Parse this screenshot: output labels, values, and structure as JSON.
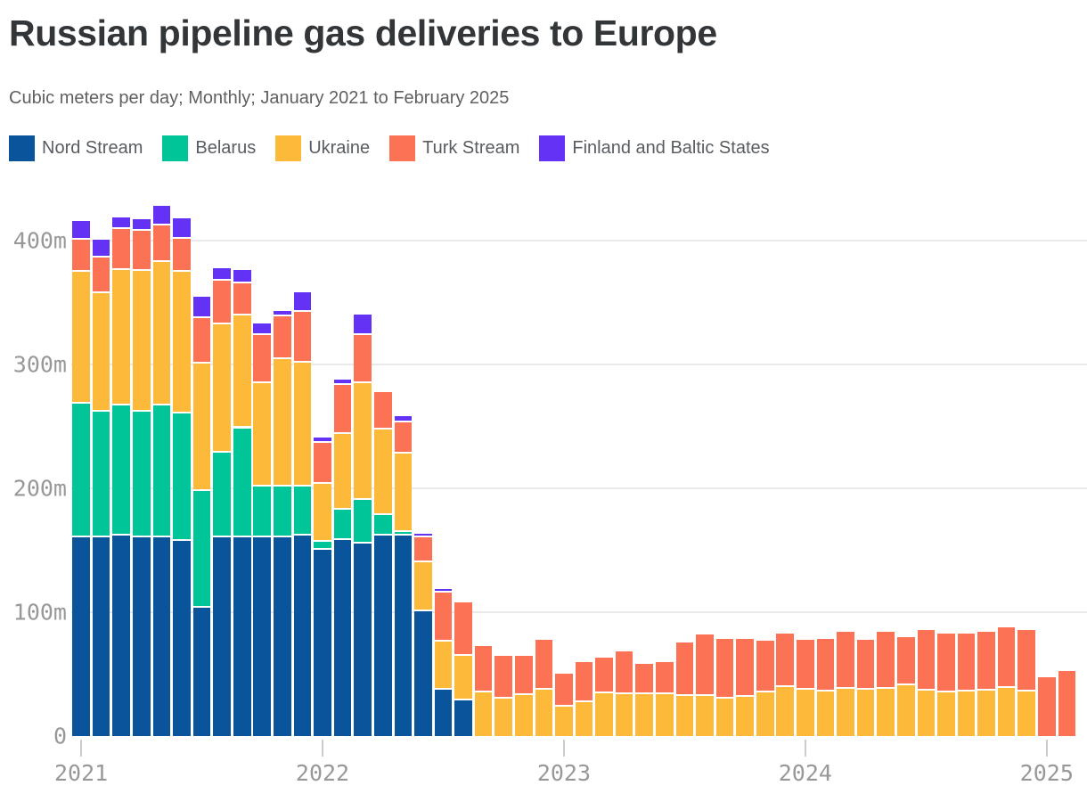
{
  "title": "Russian pipeline gas deliveries to Europe",
  "subtitle": "Cubic meters per day; Monthly; January 2021 to February 2025",
  "chart_data": {
    "type": "bar",
    "stacked": true,
    "unit": "million cubic meters per day",
    "title": "Russian pipeline gas deliveries to Europe",
    "xlabel": "",
    "ylabel": "",
    "ylim": [
      0,
      430
    ],
    "grid": "horizontal",
    "legend_position": "top",
    "categories": [
      "Jan 2021",
      "Feb 2021",
      "Mar 2021",
      "Apr 2021",
      "May 2021",
      "Jun 2021",
      "Jul 2021",
      "Aug 2021",
      "Sep 2021",
      "Oct 2021",
      "Nov 2021",
      "Dec 2021",
      "Jan 2022",
      "Feb 2022",
      "Mar 2022",
      "Apr 2022",
      "May 2022",
      "Jun 2022",
      "Jul 2022",
      "Aug 2022",
      "Sep 2022",
      "Oct 2022",
      "Nov 2022",
      "Dec 2022",
      "Jan 2023",
      "Feb 2023",
      "Mar 2023",
      "Apr 2023",
      "May 2023",
      "Jun 2023",
      "Jul 2023",
      "Aug 2023",
      "Sep 2023",
      "Oct 2023",
      "Nov 2023",
      "Dec 2023",
      "Jan 2024",
      "Feb 2024",
      "Mar 2024",
      "Apr 2024",
      "May 2024",
      "Jun 2024",
      "Jul 2024",
      "Aug 2024",
      "Sep 2024",
      "Oct 2024",
      "Nov 2024",
      "Dec 2024",
      "Jan 2025",
      "Feb 2025"
    ],
    "series": [
      {
        "name": "Nord Stream",
        "color": "#0a549b",
        "values": [
          162,
          162,
          163,
          162,
          162,
          159,
          105,
          162,
          162,
          162,
          162,
          163,
          152,
          160,
          157,
          163,
          163,
          102,
          39,
          30,
          0,
          0,
          0,
          0,
          0,
          0,
          0,
          0,
          0,
          0,
          0,
          0,
          0,
          0,
          0,
          0,
          0,
          0,
          0,
          0,
          0,
          0,
          0,
          0,
          0,
          0,
          0,
          0,
          0,
          0
        ]
      },
      {
        "name": "Belarus",
        "color": "#00c598",
        "values": [
          108,
          101,
          105,
          101,
          106,
          103,
          94,
          68,
          88,
          41,
          41,
          40,
          6,
          24,
          35,
          17,
          3.5,
          0,
          0,
          0,
          0,
          0,
          0,
          0,
          0,
          0,
          0,
          0,
          0,
          0,
          0,
          0,
          0,
          0,
          0,
          0,
          0,
          0,
          0,
          0,
          0,
          0,
          0,
          0,
          0,
          0,
          0,
          0,
          0,
          0
        ]
      },
      {
        "name": "Ukraine",
        "color": "#fdba3a",
        "values": [
          106,
          96,
          110,
          114,
          116,
          114,
          103,
          104,
          91,
          83,
          103,
          100,
          47,
          61,
          94,
          69,
          63,
          40,
          39,
          36,
          37,
          32,
          34.5,
          39,
          25,
          29,
          36,
          35,
          35.5,
          35.5,
          33.5,
          34,
          32,
          33,
          37,
          41,
          39,
          37.5,
          39.5,
          39,
          39.5,
          42.5,
          38,
          37,
          37.5,
          38,
          40,
          37.5,
          0,
          0
        ]
      },
      {
        "name": "Turk Stream",
        "color": "#fc7254",
        "values": [
          26,
          29,
          33,
          32,
          30,
          27,
          37,
          35,
          26,
          39,
          34,
          41,
          33,
          40,
          39,
          29,
          25.5,
          20,
          39.5,
          42,
          36,
          33,
          30,
          39,
          25.5,
          31,
          27.5,
          33,
          22.5,
          24.5,
          42,
          48,
          46.5,
          45.5,
          40,
          42,
          38.5,
          41,
          44.5,
          39,
          45,
          37.5,
          47.5,
          45.5,
          45,
          46,
          48,
          48,
          47.5,
          52.5
        ]
      },
      {
        "name": "Finland and Baltic States",
        "color": "#6432f5",
        "values": [
          14,
          13,
          8,
          8,
          14,
          15,
          16,
          9,
          9,
          8,
          3,
          14,
          3,
          3,
          15,
          0,
          3.5,
          1.5,
          1.5,
          0,
          0,
          0,
          0,
          0,
          0,
          0,
          0,
          0,
          0,
          0,
          0,
          0,
          0,
          0,
          0,
          0,
          0,
          0,
          0,
          0,
          0,
          0,
          0,
          0,
          0,
          0,
          0,
          0,
          0,
          0
        ]
      }
    ],
    "y_ticks": [
      {
        "value": 400,
        "label": "400m"
      },
      {
        "value": 300,
        "label": "300m"
      },
      {
        "value": 200,
        "label": "200m"
      },
      {
        "value": 100,
        "label": "100m"
      },
      {
        "value": 0,
        "label": "0"
      }
    ],
    "x_ticks": [
      {
        "month_index": 0,
        "label": "2021"
      },
      {
        "month_index": 12,
        "label": "2022"
      },
      {
        "month_index": 24,
        "label": "2023"
      },
      {
        "month_index": 36,
        "label": "2024"
      },
      {
        "month_index": 48,
        "label": "2025"
      }
    ]
  },
  "colors": {
    "background": "#ffffff",
    "title": "#333639",
    "subtitle": "#606060",
    "legend_text": "#595d61",
    "axis_label": "#989898",
    "gridline": "#e9e9e9",
    "tick": "#cccccc",
    "segment_separator": "#ffffff"
  }
}
